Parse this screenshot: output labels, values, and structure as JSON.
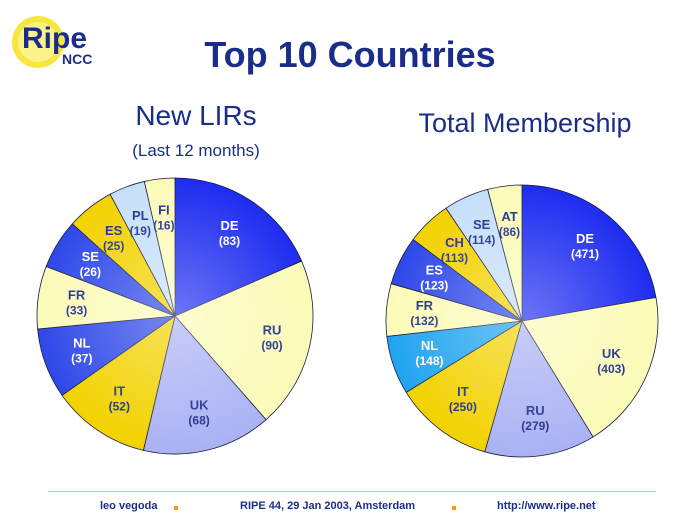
{
  "logo": {
    "word": "Ripe",
    "sub": "NCC"
  },
  "title": "Top 10 Countries",
  "footer": {
    "author": "leo vegoda",
    "event": "RIPE 44, 29 Jan 2003, Amsterdam",
    "url": "http://www.ripe.net"
  },
  "colors": {
    "title": "#1a2d8a",
    "label": "#1a2d8a",
    "yellow_light": "#fbfbb8",
    "yellow": "#f5ef38",
    "blue": "#1e2cf0",
    "lavender": "#aab2f4",
    "gold": "#f2d200",
    "royal": "#2e48e8",
    "light_blue": "#c6dff9",
    "cyan": "#1fa4f0"
  },
  "chart_data": [
    {
      "type": "pie",
      "title": "New LIRs",
      "subtitle": "(Last 12 months)",
      "categories": [
        "DE",
        "RU",
        "UK",
        "IT",
        "NL",
        "FR",
        "SE",
        "ES",
        "PL",
        "FI"
      ],
      "values": [
        83,
        90,
        68,
        52,
        37,
        33,
        26,
        25,
        19,
        16
      ],
      "labels": [
        "(83)",
        "(90)",
        "(68)",
        "(52)",
        "(37)",
        "(33)",
        "(26)",
        "(25)",
        "(19)",
        "(16)"
      ],
      "colors": [
        "#1e2cf0",
        "#fbfbb8",
        "#aab2f4",
        "#f2d200",
        "#2e48e8",
        "#fbfbb8",
        "#2e48e8",
        "#f2d200",
        "#c6dff9",
        "#fbfbb8"
      ]
    },
    {
      "type": "pie",
      "title": "Total Membership",
      "categories": [
        "DE",
        "UK",
        "RU",
        "IT",
        "NL",
        "FR",
        "ES",
        "CH",
        "SE",
        "AT"
      ],
      "values": [
        471,
        403,
        279,
        250,
        148,
        132,
        123,
        113,
        114,
        86
      ],
      "labels": [
        "(471)",
        "(403)",
        "(279)",
        "(250)",
        "(148)",
        "(132)",
        "(123)",
        "(113)",
        "(114)",
        "(86)"
      ],
      "colors": [
        "#1e2cf0",
        "#fbfbb8",
        "#aab2f4",
        "#f2d200",
        "#1fa4f0",
        "#fbfbb8",
        "#2e48e8",
        "#f2d200",
        "#c6dff9",
        "#fbfbb8"
      ]
    }
  ]
}
